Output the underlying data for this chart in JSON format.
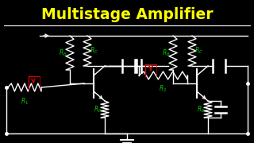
{
  "title": "Multistage Amplifier",
  "title_color": "#FFFF00",
  "bg_color": "#000000",
  "line_color": "#FFFFFF",
  "label_color": "#00CC00",
  "arrow_color": "#CC0000",
  "title_fontsize": 13.5,
  "label_fontsize": 5.5
}
